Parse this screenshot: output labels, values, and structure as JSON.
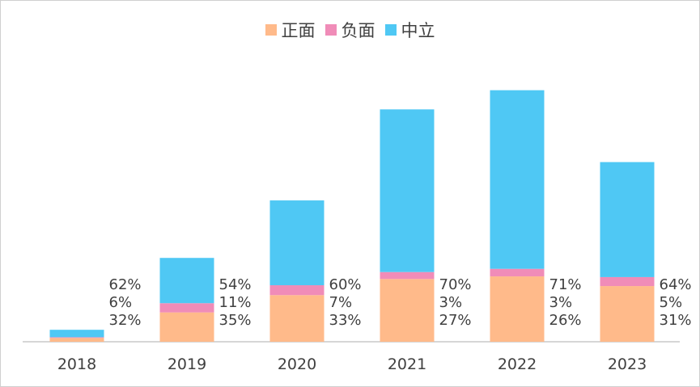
{
  "chart_data": {
    "type": "bar",
    "stacked": true,
    "title": "",
    "xlabel": "",
    "ylabel": "",
    "categories": [
      "2018",
      "2019",
      "2020",
      "2021",
      "2022",
      "2023"
    ],
    "totals": [
      5,
      35,
      59,
      97,
      105,
      75
    ],
    "ylim": [
      0,
      115
    ],
    "legend_position": "top-center",
    "grid": false,
    "series": [
      {
        "name": "正面",
        "color": "#FFBA8A",
        "percent_labels": [
          "32%",
          "35%",
          "33%",
          "27%",
          "26%",
          "31%"
        ],
        "share": [
          0.32,
          0.35,
          0.33,
          0.27,
          0.26,
          0.31
        ]
      },
      {
        "name": "负面",
        "color": "#F08CB8",
        "percent_labels": [
          "6%",
          "11%",
          "7%",
          "3%",
          "3%",
          "5%"
        ],
        "share": [
          0.06,
          0.11,
          0.07,
          0.03,
          0.03,
          0.05
        ]
      },
      {
        "name": "中立",
        "color": "#4FC8F4",
        "percent_labels": [
          "62%",
          "54%",
          "60%",
          "70%",
          "71%",
          "64%"
        ],
        "share": [
          0.62,
          0.54,
          0.6,
          0.7,
          0.71,
          0.64
        ]
      }
    ]
  }
}
